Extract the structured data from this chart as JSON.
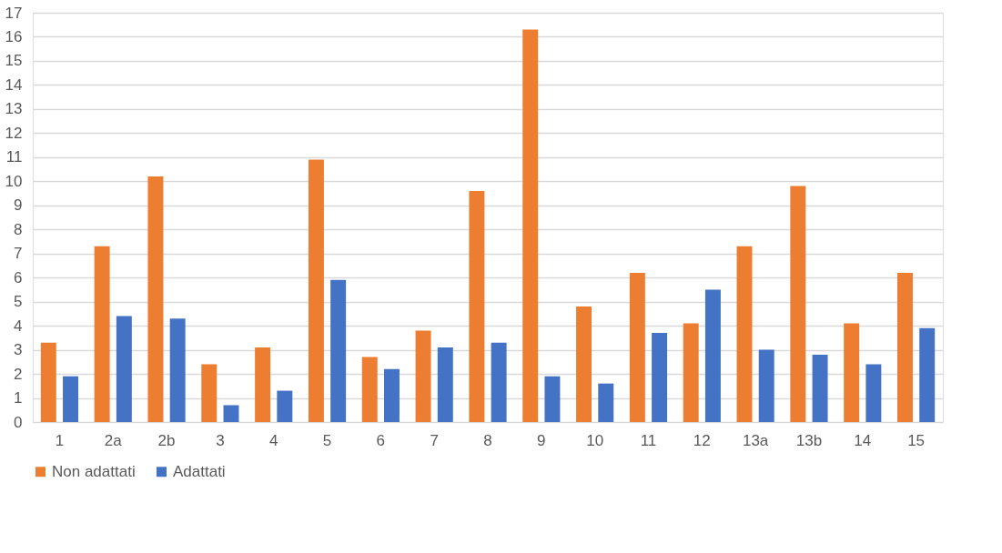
{
  "chart_data": {
    "type": "bar",
    "categories": [
      "1",
      "2a",
      "2b",
      "3",
      "4",
      "5",
      "6",
      "7",
      "8",
      "9",
      "10",
      "11",
      "12",
      "13a",
      "13b",
      "14",
      "15"
    ],
    "series": [
      {
        "name": "Non adattati",
        "color": "#ed7d31",
        "values": [
          3.3,
          7.3,
          10.2,
          2.4,
          3.1,
          10.9,
          2.7,
          3.8,
          9.6,
          16.3,
          4.8,
          6.2,
          4.1,
          7.3,
          9.8,
          4.1,
          6.2
        ]
      },
      {
        "name": "Adattati",
        "color": "#4472c4",
        "values": [
          1.9,
          4.4,
          4.3,
          0.7,
          1.3,
          5.9,
          2.2,
          3.1,
          3.3,
          1.9,
          1.6,
          3.7,
          5.5,
          3.0,
          2.8,
          2.4,
          3.9
        ]
      }
    ],
    "ylim": [
      0,
      17
    ],
    "yticks": [
      0,
      1,
      2,
      3,
      4,
      5,
      6,
      7,
      8,
      9,
      10,
      11,
      12,
      13,
      14,
      15,
      16,
      17
    ],
    "grid": "y",
    "legend": "bottom"
  }
}
